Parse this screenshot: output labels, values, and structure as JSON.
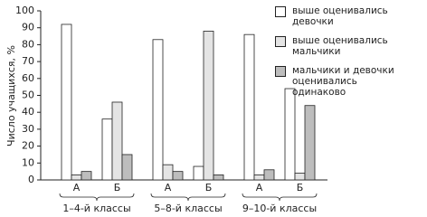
{
  "chart_data": {
    "type": "bar",
    "y_label": "Число учащихся, %",
    "categories": [
      "А",
      "Б",
      "А",
      "Б",
      "А",
      "Б"
    ],
    "groups": [
      "1–4-й классы",
      "5–8-й классы",
      "9–10-й классы"
    ],
    "series": [
      {
        "name": "выше оценивались девочки",
        "color": "#ffffff",
        "values": [
          92,
          36,
          83,
          8,
          86,
          54
        ]
      },
      {
        "name": "выше оценивались мальчики",
        "color": "#e4e4e4",
        "values": [
          3,
          46,
          9,
          88,
          3,
          4
        ]
      },
      {
        "name": "мальчики и девочки оценивались одинаково",
        "color": "#bdbdbd",
        "values": [
          5,
          15,
          5,
          3,
          6,
          44
        ]
      }
    ],
    "ylim": [
      0,
      100
    ],
    "yticks": [
      0,
      10,
      20,
      30,
      40,
      50,
      60,
      70,
      80,
      90,
      100
    ]
  }
}
